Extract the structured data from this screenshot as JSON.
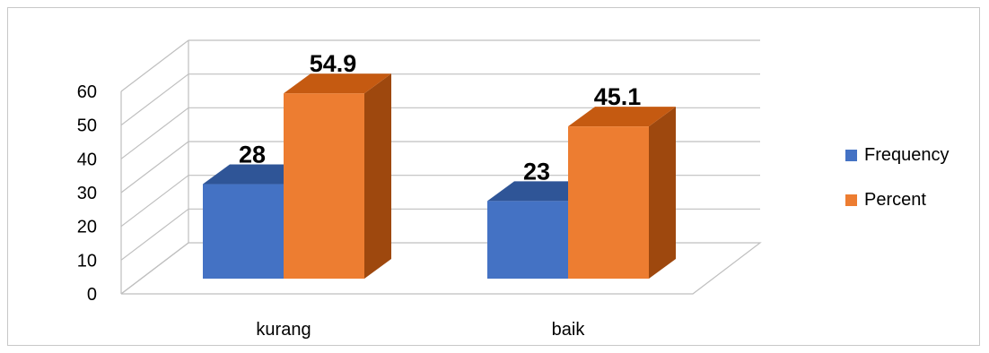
{
  "chart_data": {
    "type": "bar",
    "style": "3d-clustered-column",
    "categories": [
      "kurang",
      "baik"
    ],
    "series": [
      {
        "name": "Frequency",
        "values": [
          28,
          23
        ],
        "color": "#4472C4",
        "top_color": "#2F5597",
        "side_color": "#2F5597"
      },
      {
        "name": "Percent",
        "values": [
          54.9,
          45.1
        ],
        "color": "#ED7D31",
        "top_color": "#C55A11",
        "side_color": "#9E480E"
      }
    ],
    "data_labels": [
      "28",
      "23",
      "54.9",
      "45.1"
    ],
    "ylim": [
      0,
      60
    ],
    "yticks": [
      "0",
      "10",
      "20",
      "30",
      "40",
      "50",
      "60"
    ],
    "grid": true,
    "legend_position": "right"
  }
}
